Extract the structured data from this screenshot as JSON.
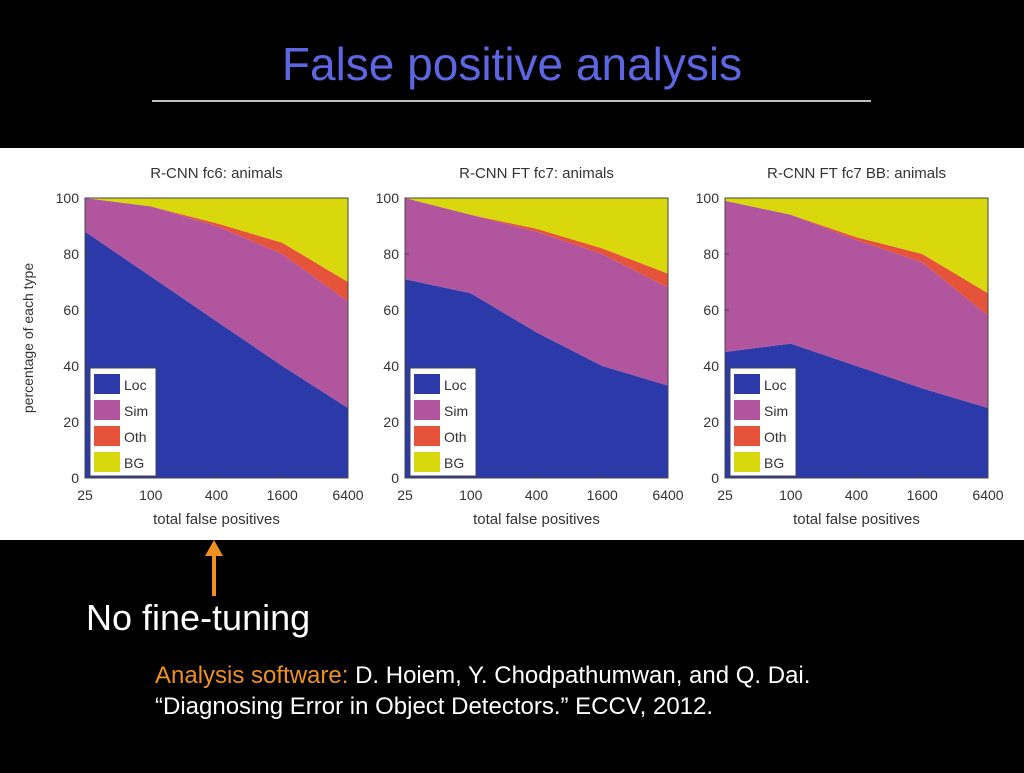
{
  "slide": {
    "title": "False positive analysis",
    "annotation": "No fine-tuning",
    "citation_label": "Analysis software:",
    "citation": "D. Hoiem, Y. Chodpathumwan, and Q. Dai. “Diagnosing Error in Object Detectors.” ECCV, 2012."
  },
  "chart_data": [
    {
      "type": "area",
      "stacked": true,
      "title": "R-CNN fc6: animals",
      "ylabel": "percentage of each type",
      "xlabel": "total false positives",
      "xscale": "log",
      "x": [
        25,
        100,
        400,
        1600,
        6400
      ],
      "xlim": [
        25,
        6400
      ],
      "xticks": [
        25,
        100,
        400,
        1600,
        6400
      ],
      "ylim": [
        0,
        100
      ],
      "yticks": [
        0,
        20,
        40,
        60,
        80,
        100
      ],
      "legend": "lower left",
      "series": [
        {
          "name": "Loc",
          "color": "#2b3aa8",
          "values": [
            88,
            72,
            56,
            40,
            25
          ]
        },
        {
          "name": "Sim",
          "color": "#b0559e",
          "values": [
            12,
            25,
            34,
            40,
            38
          ]
        },
        {
          "name": "Oth",
          "color": "#e5533b",
          "values": [
            0,
            0,
            1,
            4,
            7
          ]
        },
        {
          "name": "BG",
          "color": "#d9d80c",
          "values": [
            0,
            3,
            9,
            16,
            30
          ]
        }
      ]
    },
    {
      "type": "area",
      "stacked": true,
      "title": "R-CNN FT fc7: animals",
      "xlabel": "total false positives",
      "xscale": "log",
      "x": [
        25,
        100,
        400,
        1600,
        6400
      ],
      "xlim": [
        25,
        6400
      ],
      "xticks": [
        25,
        100,
        400,
        1600,
        6400
      ],
      "ylim": [
        0,
        100
      ],
      "yticks": [
        0,
        20,
        40,
        60,
        80,
        100
      ],
      "legend": "lower left",
      "series": [
        {
          "name": "Loc",
          "color": "#2b3aa8",
          "values": [
            71,
            66,
            52,
            40,
            33
          ]
        },
        {
          "name": "Sim",
          "color": "#b0559e",
          "values": [
            29,
            28,
            36,
            40,
            35
          ]
        },
        {
          "name": "Oth",
          "color": "#e5533b",
          "values": [
            0,
            0,
            1,
            2,
            5
          ]
        },
        {
          "name": "BG",
          "color": "#d9d80c",
          "values": [
            0,
            6,
            11,
            18,
            27
          ]
        }
      ]
    },
    {
      "type": "area",
      "stacked": true,
      "title": "R-CNN FT fc7 BB: animals",
      "xlabel": "total false positives",
      "xscale": "log",
      "x": [
        25,
        100,
        400,
        1600,
        6400
      ],
      "xlim": [
        25,
        6400
      ],
      "xticks": [
        25,
        100,
        400,
        1600,
        6400
      ],
      "ylim": [
        0,
        100
      ],
      "yticks": [
        0,
        20,
        40,
        60,
        80,
        100
      ],
      "legend": "lower left",
      "series": [
        {
          "name": "Loc",
          "color": "#2b3aa8",
          "values": [
            45,
            48,
            40,
            32,
            25
          ]
        },
        {
          "name": "Sim",
          "color": "#b0559e",
          "values": [
            54,
            46,
            45,
            45,
            33
          ]
        },
        {
          "name": "Oth",
          "color": "#e5533b",
          "values": [
            0,
            0,
            1,
            3,
            8
          ]
        },
        {
          "name": "BG",
          "color": "#d9d80c",
          "values": [
            1,
            6,
            14,
            20,
            34
          ]
        }
      ]
    }
  ]
}
